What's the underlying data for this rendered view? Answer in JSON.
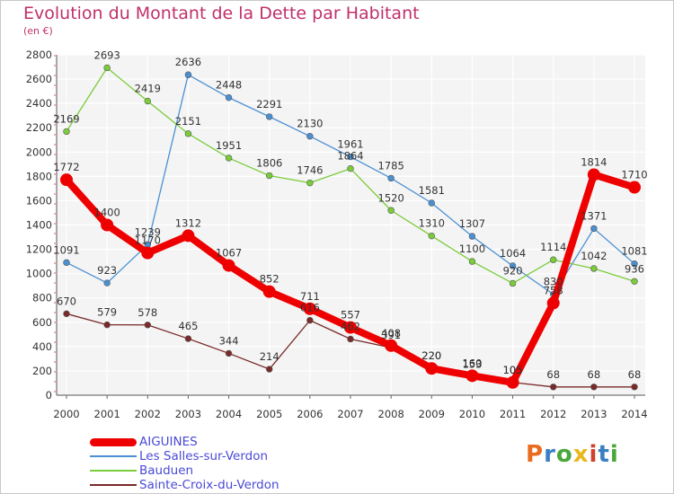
{
  "title": "Evolution du Montant de la Dette par Habitant",
  "subtitle": "(en €)",
  "logo": {
    "text": "Proxiti",
    "colors": [
      "#e86b1e",
      "#3a7fc4",
      "#4aa83a",
      "#e8b81e",
      "#d0402a",
      "#3a7fc4",
      "#4aa83a"
    ]
  },
  "chart_data": {
    "type": "line",
    "title": "Evolution du Montant de la Dette par Habitant",
    "ylabel": "(en €)",
    "x": [
      "2000",
      "2001",
      "2002",
      "2003",
      "2004",
      "2005",
      "2006",
      "2007",
      "2008",
      "2009",
      "2010",
      "2011",
      "2012",
      "2013",
      "2014"
    ],
    "ylim": [
      0,
      2800
    ],
    "yticks": [
      0,
      200,
      400,
      600,
      800,
      1000,
      1200,
      1400,
      1600,
      1800,
      2000,
      2200,
      2400,
      2600,
      2800
    ],
    "grid": true,
    "legend_position": "bottom-left",
    "series": [
      {
        "name": "Les Salles-sur-Verdon",
        "color": "#4a90d2",
        "values": [
          1091,
          923,
          1239,
          2636,
          2448,
          2291,
          2130,
          1961,
          1785,
          1581,
          1307,
          1064,
          830,
          1371,
          1081
        ]
      },
      {
        "name": "Bauduen",
        "color": "#7acc3a",
        "values": [
          2169,
          2693,
          2419,
          2151,
          1951,
          1806,
          1746,
          1864,
          1520,
          1310,
          1100,
          920,
          1114,
          1042,
          936
        ]
      },
      {
        "name": "Sainte-Croix-du-Verdon",
        "color": "#7a2a2a",
        "values": [
          670,
          579,
          578,
          465,
          344,
          214,
          616,
          462,
          391,
          220,
          153,
          105,
          68,
          68,
          68
        ]
      },
      {
        "name": "AIGUINES",
        "color": "#ee0000",
        "values": [
          1772,
          1400,
          1170,
          1312,
          1067,
          852,
          711,
          557,
          408,
          220,
          160,
          105,
          758,
          1814,
          1710
        ]
      }
    ]
  },
  "legend": [
    {
      "name": "AIGUINES",
      "color": "#ee0000",
      "text_color": "#4a4ad6",
      "width": 9
    },
    {
      "name": "Les Salles-sur-Verdon",
      "color": "#4a90d2",
      "text_color": "#4a4ad6",
      "width": 1.5
    },
    {
      "name": "Bauduen",
      "color": "#7acc3a",
      "text_color": "#4a4ad6",
      "width": 1.5
    },
    {
      "name": "Sainte-Croix-du-Verdon",
      "color": "#7a2a2a",
      "text_color": "#4a4ad6",
      "width": 1.5
    }
  ]
}
